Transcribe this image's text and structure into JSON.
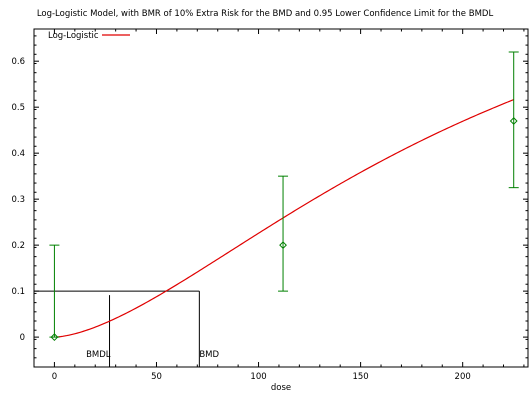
{
  "chart_data": {
    "type": "line",
    "title": "Log-Logistic Model, with BMR of 10% Extra Risk for the BMD and 0.95 Lower Confidence Limit for the BMDL",
    "xlabel": "dose",
    "ylabel": "",
    "xlim": [
      -10,
      232
    ],
    "ylim": [
      -0.065,
      0.67
    ],
    "x_ticks": [
      0,
      50,
      100,
      150,
      200
    ],
    "y_ticks": [
      0,
      0.1,
      0.2,
      0.3,
      0.4,
      0.5,
      0.6
    ],
    "x_tick_labels": [
      "0",
      "50",
      "100",
      "150",
      "200"
    ],
    "y_tick_labels": [
      "0",
      "0.1",
      "0.2",
      "0.3",
      "0.4",
      "0.5",
      "0.6"
    ],
    "legend": {
      "position": "top-left",
      "entries": [
        "Log-Logistic"
      ]
    },
    "model": {
      "name": "Log-Logistic",
      "color": "#e00000",
      "background": 0.0,
      "slope": 1.6,
      "intercept": -8.6,
      "x_range": [
        1,
        225
      ]
    },
    "observed": {
      "color": "#008000",
      "points": [
        {
          "x": 0,
          "y": 0.0,
          "lower": 0.0,
          "upper": 0.2
        },
        {
          "x": 112,
          "y": 0.2,
          "lower": 0.1,
          "upper": 0.35
        },
        {
          "x": 225,
          "y": 0.47,
          "lower": 0.325,
          "upper": 0.62
        }
      ]
    },
    "bmr": {
      "level": 0.1,
      "bmd": 71,
      "bmdl": 27,
      "bmd_label": "BMD",
      "bmdl_label": "BMDL"
    },
    "grid": false
  }
}
